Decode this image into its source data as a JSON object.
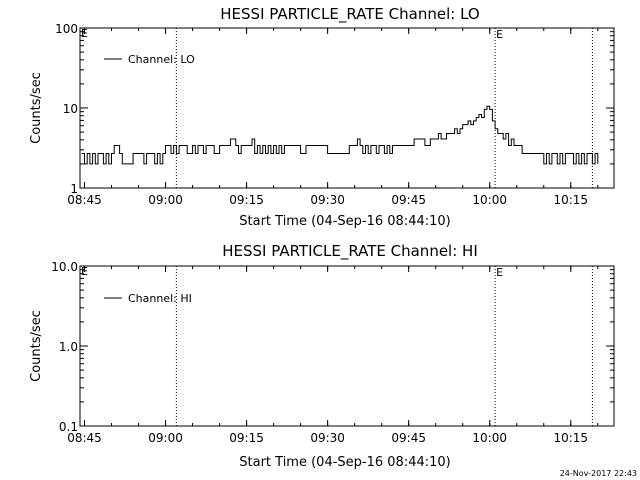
{
  "footer": {
    "timestamp": "24-Nov-2017 22:43"
  },
  "chart_data": [
    {
      "type": "line",
      "title": "HESSI PARTICLE_RATE Channel: LO",
      "xlabel": "Start Time (04-Sep-16 08:44:10)",
      "ylabel": "Counts/sec",
      "yscale": "log",
      "ylim": [
        1,
        100
      ],
      "xlim": [
        "08:44:10",
        "10:23:00"
      ],
      "x_ticks": [
        "08:45",
        "09:00",
        "09:15",
        "09:30",
        "09:45",
        "10:00",
        "10:15"
      ],
      "y_ticks": [
        "1",
        "10",
        "100"
      ],
      "legend": {
        "position": "top-left",
        "entries": [
          "Channel: LO"
        ]
      },
      "markers": [
        {
          "time": "09:02",
          "label": ""
        },
        {
          "time": "10:01",
          "label": "E"
        },
        {
          "time": "10:19",
          "label": ""
        }
      ],
      "corner_label": "E",
      "series": [
        {
          "name": "Channel: LO",
          "x": [
            "08:44:30",
            "08:45:00",
            "08:45:30",
            "08:46:00",
            "08:46:30",
            "08:47:00",
            "08:47:30",
            "08:48:00",
            "08:48:30",
            "08:49:00",
            "08:49:30",
            "08:50:00",
            "08:50:30",
            "08:51:00",
            "08:51:30",
            "08:52:00",
            "08:53:00",
            "08:54:00",
            "08:55:00",
            "08:55:30",
            "08:56:00",
            "08:56:30",
            "08:57:00",
            "08:57:30",
            "08:58:00",
            "08:58:30",
            "08:59:00",
            "08:59:30",
            "09:00:00",
            "09:01:00",
            "09:01:30",
            "09:02:00",
            "09:02:30",
            "09:03:00",
            "09:04:00",
            "09:05:00",
            "09:05:30",
            "09:06:00",
            "09:07:00",
            "09:07:30",
            "09:08:00",
            "09:09:00",
            "09:10:00",
            "09:10:30",
            "09:11:00",
            "09:12:00",
            "09:13:00",
            "09:13:30",
            "09:14:00",
            "09:15:00",
            "09:15:30",
            "09:16:00",
            "09:16:30",
            "09:17:00",
            "09:17:30",
            "09:18:00",
            "09:18:30",
            "09:19:00",
            "09:19:30",
            "09:20:00",
            "09:20:30",
            "09:21:00",
            "09:21:30",
            "09:22:00",
            "09:23:00",
            "09:24:00",
            "09:25:00",
            "09:26:00",
            "09:27:00",
            "09:28:00",
            "09:29:00",
            "09:30:00",
            "09:31:00",
            "09:32:00",
            "09:33:00",
            "09:34:00",
            "09:35:00",
            "09:35:30",
            "09:36:00",
            "09:36:30",
            "09:37:00",
            "09:37:30",
            "09:38:00",
            "09:38:30",
            "09:39:00",
            "09:39:30",
            "09:40:00",
            "09:40:30",
            "09:41:00",
            "09:41:30",
            "09:42:00",
            "09:43:00",
            "09:44:00",
            "09:45:00",
            "09:46:00",
            "09:47:00",
            "09:48:00",
            "09:49:00",
            "09:50:00",
            "09:50:30",
            "09:51:00",
            "09:52:00",
            "09:53:00",
            "09:53:30",
            "09:54:00",
            "09:54:30",
            "09:55:00",
            "09:55:30",
            "09:56:00",
            "09:56:30",
            "09:57:00",
            "09:57:30",
            "09:58:00",
            "09:58:30",
            "09:59:00",
            "09:59:30",
            "10:00:00",
            "10:00:30",
            "10:01:00",
            "10:01:30",
            "10:02:00",
            "10:02:30",
            "10:03:00",
            "10:03:30",
            "10:04:00",
            "10:04:30",
            "10:05:00",
            "10:06:00",
            "10:07:00",
            "10:08:00",
            "10:09:00",
            "10:09:30",
            "10:10:00",
            "10:10:30",
            "10:11:00",
            "10:11:30",
            "10:12:00",
            "10:12:30",
            "10:13:00",
            "10:13:30",
            "10:14:00",
            "10:14:30",
            "10:15:00",
            "10:15:30",
            "10:16:00",
            "10:16:30",
            "10:17:00",
            "10:17:30",
            "10:18:00",
            "10:18:30",
            "10:19:00",
            "10:19:30",
            "10:20:00"
          ],
          "y": [
            2.7,
            2.0,
            2.7,
            2.0,
            2.7,
            2.0,
            2.7,
            2.7,
            2.0,
            2.7,
            2.0,
            2.7,
            3.4,
            3.4,
            2.7,
            2.0,
            2.0,
            2.7,
            2.7,
            2.7,
            2.0,
            2.7,
            2.7,
            2.7,
            2.0,
            2.7,
            2.0,
            2.7,
            3.4,
            2.7,
            3.4,
            2.7,
            3.4,
            3.4,
            2.7,
            3.4,
            2.7,
            3.4,
            2.7,
            3.4,
            3.4,
            2.7,
            3.4,
            3.4,
            3.4,
            4.1,
            3.4,
            2.7,
            3.4,
            3.4,
            3.4,
            4.1,
            2.7,
            3.4,
            2.7,
            3.4,
            2.7,
            3.4,
            2.7,
            3.4,
            2.7,
            3.4,
            2.7,
            3.4,
            3.4,
            3.4,
            2.7,
            3.4,
            3.4,
            3.4,
            3.4,
            2.7,
            2.7,
            2.7,
            2.7,
            3.4,
            3.4,
            4.1,
            3.4,
            2.7,
            3.4,
            2.7,
            3.4,
            3.4,
            2.7,
            3.4,
            3.4,
            2.7,
            3.4,
            2.7,
            3.4,
            3.4,
            3.4,
            3.4,
            4.1,
            4.1,
            3.4,
            4.1,
            4.1,
            4.8,
            4.1,
            4.8,
            4.8,
            5.5,
            4.8,
            5.5,
            6.2,
            6.2,
            6.9,
            6.2,
            6.9,
            7.6,
            8.3,
            7.6,
            9.6,
            10.5,
            9.6,
            6.9,
            5.5,
            4.8,
            4.8,
            4.1,
            4.8,
            3.4,
            4.1,
            3.4,
            3.4,
            2.7,
            2.7,
            2.7,
            2.7,
            2.7,
            2.0,
            2.7,
            2.0,
            2.7,
            2.7,
            2.0,
            2.7,
            2.0,
            2.7,
            2.7,
            2.7,
            2.0,
            2.7,
            2.0,
            2.7,
            2.0,
            2.7,
            2.7,
            2.0,
            2.7,
            2.0
          ]
        }
      ]
    },
    {
      "type": "line",
      "title": "HESSI PARTICLE_RATE Channel: HI",
      "xlabel": "Start Time (04-Sep-16 08:44:10)",
      "ylabel": "Counts/sec",
      "yscale": "log",
      "ylim": [
        0.1,
        10
      ],
      "xlim": [
        "08:44:10",
        "10:23:00"
      ],
      "x_ticks": [
        "08:45",
        "09:00",
        "09:15",
        "09:30",
        "09:45",
        "10:00",
        "10:15"
      ],
      "y_ticks": [
        "0.1",
        "1.0",
        "10.0"
      ],
      "legend": {
        "position": "top-left",
        "entries": [
          "Channel: HI"
        ]
      },
      "markers": [
        {
          "time": "09:02",
          "label": ""
        },
        {
          "time": "10:01",
          "label": "E"
        },
        {
          "time": "10:19",
          "label": ""
        }
      ],
      "corner_label": "E",
      "series": [
        {
          "name": "Channel: HI",
          "x": [],
          "y": []
        }
      ]
    }
  ]
}
